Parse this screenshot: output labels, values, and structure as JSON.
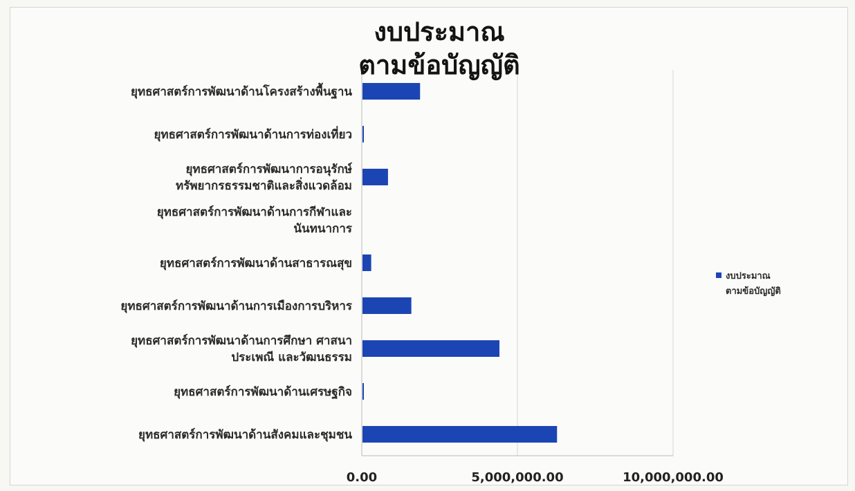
{
  "chart_data": {
    "type": "bar",
    "orientation": "horizontal",
    "title_lines": [
      "งบประมาณ",
      "ตามข้อบัญญัติ"
    ],
    "categories": [
      [
        "ยุทธศาสตร์การพัฒนาด้านโครงสร้างพื้นฐาน"
      ],
      [
        "ยุทธศาสตร์การพัฒนาด้านการท่องเที่ยว"
      ],
      [
        "ยุทธศาสตร์การพัฒนาการอนุรักษ์",
        "ทรัพยากรธรรมชาติและสิ่งแวดล้อม"
      ],
      [
        "ยุทธศาสตร์การพัฒนาด้านการกีฬาและ",
        "นันทนาการ"
      ],
      [
        "ยุทธศาสตร์การพัฒนาด้านสาธารณสุข"
      ],
      [
        "ยุทธศาสตร์การพัฒนาด้านการเมืองการบริหาร"
      ],
      [
        "ยุทธศาสตร์การพัฒนาด้านการศึกษา ศาสนา",
        "ประเพณี และวัฒนธรรม"
      ],
      [
        "ยุทธศาสตร์การพัฒนาด้านเศรษฐกิจ"
      ],
      [
        "ยุทธศาสตร์การพัฒนาด้านสังคมและชุมชน"
      ]
    ],
    "series": [
      {
        "name": "งบประมาณ ตามข้อบัญญัติ",
        "legend_lines": [
          "งบประมาณ",
          "ตามข้อบัญญัติ"
        ],
        "color": "#1c45b4",
        "values": [
          1850000,
          40000,
          820000,
          0,
          280000,
          1570000,
          4400000,
          30000,
          6250000
        ]
      }
    ],
    "xlim": [
      0,
      10000000
    ],
    "x_ticks": [
      {
        "value": 0,
        "label": "0.00"
      },
      {
        "value": 5000000,
        "label": "5,000,000.00"
      },
      {
        "value": 10000000,
        "label": "10,000,000.00"
      }
    ],
    "grid": true,
    "legend_position": "right"
  }
}
